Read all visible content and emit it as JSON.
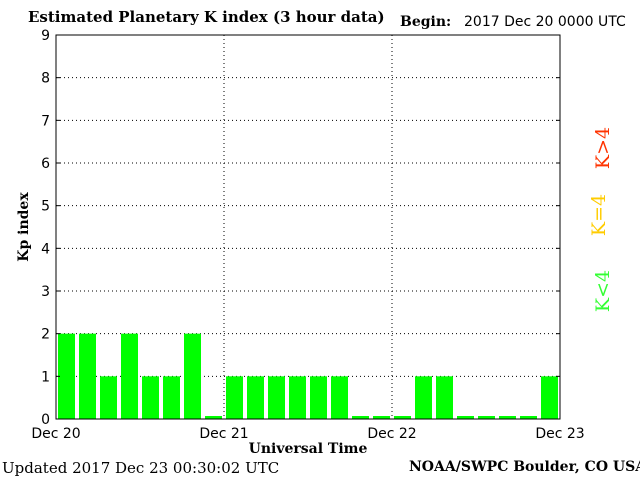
{
  "header": {
    "title": "Estimated Planetary K index (3 hour data)",
    "begin_label": "Begin:",
    "begin_value": "2017 Dec 20 0000 UTC"
  },
  "footer": {
    "updated": "Updated 2017 Dec 23 00:30:02 UTC",
    "credit": "NOAA/SWPC Boulder, CO USA"
  },
  "legend": [
    {
      "label": "K>4",
      "color": "#ff3300"
    },
    {
      "label": "K=4",
      "color": "#ffcc00"
    },
    {
      "label": "K<4",
      "color": "#33ff33"
    }
  ],
  "chart_data": {
    "type": "bar",
    "title": "Estimated Planetary K index (3 hour data)",
    "xlabel": "Universal Time",
    "ylabel": "Kp index",
    "ylim": [
      0,
      9
    ],
    "yticks": [
      0,
      1,
      2,
      3,
      4,
      5,
      6,
      7,
      8,
      9
    ],
    "xtick_labels": [
      "Dec 20",
      "Dec 21",
      "Dec 22",
      "Dec 23"
    ],
    "grid": "dotted vertical at day boundaries, dotted horizontal at each integer",
    "bar_color": "#00ff00",
    "values": [
      2,
      2,
      1,
      2,
      1,
      1,
      2,
      0,
      1,
      1,
      1,
      1,
      1,
      1,
      0,
      0,
      0,
      1,
      1,
      0,
      0,
      0,
      0,
      1
    ]
  }
}
